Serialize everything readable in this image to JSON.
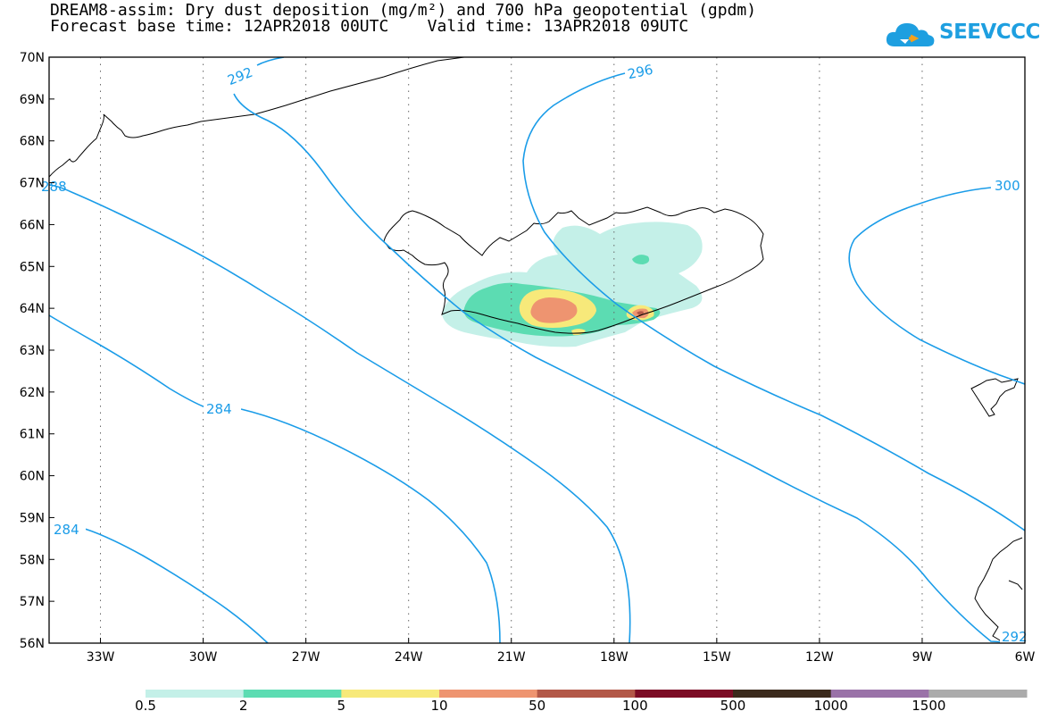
{
  "title_line1": "DREAM8-assim: Dry dust deposition (mg/m²) and 700 hPa geopotential (gpdm)",
  "title_line2": "Forecast base time: 12APR2018 00UTC    Valid time: 13APR2018 09UTC",
  "logo_text": "SEEVCCC",
  "map_extent": {
    "lon_min": -34.5,
    "lon_max": -6,
    "lat_min": 56,
    "lat_max": 70
  },
  "lat_labels": [
    "70N",
    "69N",
    "68N",
    "67N",
    "66N",
    "65N",
    "64N",
    "63N",
    "62N",
    "61N",
    "60N",
    "59N",
    "58N",
    "57N",
    "56N"
  ],
  "lon_labels": [
    "33W",
    "30W",
    "27W",
    "24W",
    "21W",
    "18W",
    "15W",
    "12W",
    "9W",
    "6W"
  ],
  "colors": {
    "contour": "#1a9ce8",
    "coast": "#000000",
    "bins": [
      "#c4f0e8",
      "#5cdcb2",
      "#f7e97a",
      "#ee9470",
      "#b35848",
      "#7c0c25",
      "#3b2a1c",
      "#9a72a8",
      "#ababab"
    ]
  },
  "colorbar": {
    "labels": [
      "0.5",
      "2",
      "5",
      "10",
      "50",
      "100",
      "500",
      "1000",
      "1500"
    ]
  },
  "contour_labels": [
    "292",
    "296",
    "300",
    "284",
    "284",
    "288",
    "292"
  ]
}
